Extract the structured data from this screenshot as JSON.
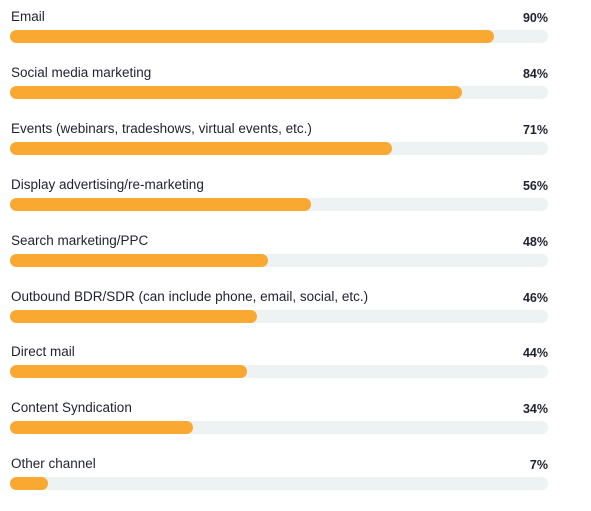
{
  "chart_data": {
    "type": "bar",
    "orientation": "horizontal",
    "categories": [
      "Email",
      "Social media marketing",
      "Events (webinars, tradeshows, virtual events, etc.)",
      "Display advertising/re-marketing",
      "Search marketing/PPC",
      "Outbound BDR/SDR (can include phone, email, social, etc.)",
      "Direct mail",
      "Content Syndication",
      "Other channel"
    ],
    "values": [
      90,
      84,
      71,
      56,
      48,
      46,
      44,
      34,
      7
    ],
    "value_labels": [
      "90%",
      "84%",
      "71%",
      "56%",
      "48%",
      "46%",
      "44%",
      "34%",
      "7%"
    ],
    "xlim": [
      0,
      100
    ],
    "unit": "%",
    "grid": false,
    "legend": "none",
    "colors": {
      "bar": "#f9a932",
      "track": "#edf2f3",
      "text": "#1f2230"
    }
  }
}
